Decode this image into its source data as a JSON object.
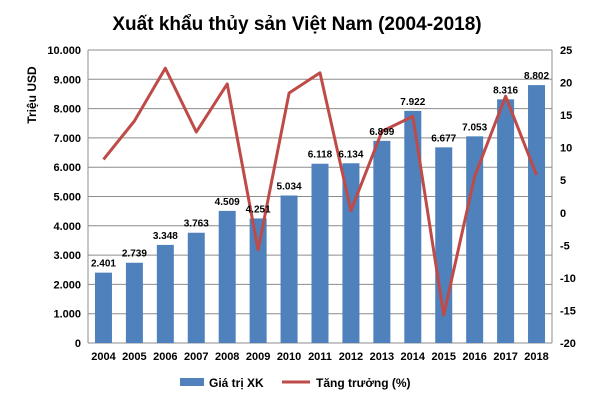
{
  "chart_data": {
    "type": "bar",
    "title": "Xuất khẩu thủy sản Việt Nam (2004-2018)",
    "ylabel": "Triệu USD",
    "categories": [
      "2004",
      "2005",
      "2006",
      "2007",
      "2008",
      "2009",
      "2010",
      "2011",
      "2012",
      "2013",
      "2014",
      "2015",
      "2016",
      "2017",
      "2018"
    ],
    "series": [
      {
        "name": "Giá trị XK",
        "type": "bar",
        "axis": "left",
        "color": "#4f81bd",
        "values": [
          2401,
          2739,
          3348,
          3763,
          4509,
          4251,
          5034,
          6118,
          6134,
          6899,
          7922,
          6677,
          7053,
          8316,
          8802
        ],
        "labels": [
          "2.401",
          "2.739",
          "3.348",
          "3.763",
          "4.509",
          "4.251",
          "5.034",
          "6.118",
          "6.134",
          "6.899",
          "7.922",
          "6.677",
          "7.053",
          "8.316",
          "8.802"
        ]
      },
      {
        "name": "Tăng trưởng (%)",
        "type": "line",
        "axis": "right",
        "color": "#be4b48",
        "values": [
          8.2,
          14.1,
          22.2,
          12.4,
          19.8,
          -5.7,
          18.4,
          21.5,
          0.3,
          12.5,
          14.8,
          -15.7,
          5.6,
          17.9,
          5.8
        ]
      }
    ],
    "y_left": {
      "range": [
        0,
        10000
      ],
      "ticks": [
        0,
        1000,
        2000,
        3000,
        4000,
        5000,
        6000,
        7000,
        8000,
        9000,
        10000
      ],
      "tick_labels": [
        "0",
        "1.000",
        "2.000",
        "3.000",
        "4.000",
        "5.000",
        "6.000",
        "7.000",
        "8.000",
        "9.000",
        "10.000"
      ]
    },
    "y_right": {
      "range": [
        -20,
        25
      ],
      "ticks": [
        -20,
        -15,
        -10,
        -5,
        0,
        5,
        10,
        15,
        20,
        25
      ],
      "tick_labels": [
        "-20",
        "-15",
        "-10",
        "-5",
        "0",
        "5",
        "10",
        "15",
        "20",
        "25"
      ]
    },
    "grid": true,
    "legend": "bottom"
  }
}
